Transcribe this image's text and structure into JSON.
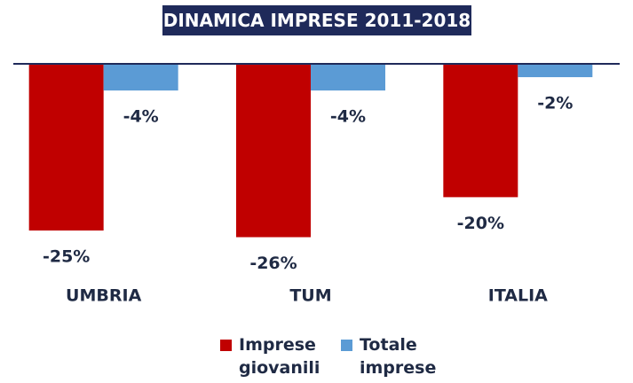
{
  "chart_data": {
    "type": "bar",
    "title": "DINAMICA IMPRESE 2011-2018",
    "categories": [
      "UMBRIA",
      "TUM",
      "ITALIA"
    ],
    "series": [
      {
        "name": "Imprese giovanili",
        "color": "#c00000",
        "values": [
          -25,
          -26,
          -20
        ],
        "value_labels": [
          "-25%",
          "-26%",
          "-20%"
        ]
      },
      {
        "name": "Totale imprese",
        "color": "#5b9bd5",
        "values": [
          -4,
          -4,
          -2
        ],
        "value_labels": [
          "-4%",
          "-4%",
          "-2%"
        ]
      }
    ],
    "ylim": [
      -30,
      0
    ]
  }
}
